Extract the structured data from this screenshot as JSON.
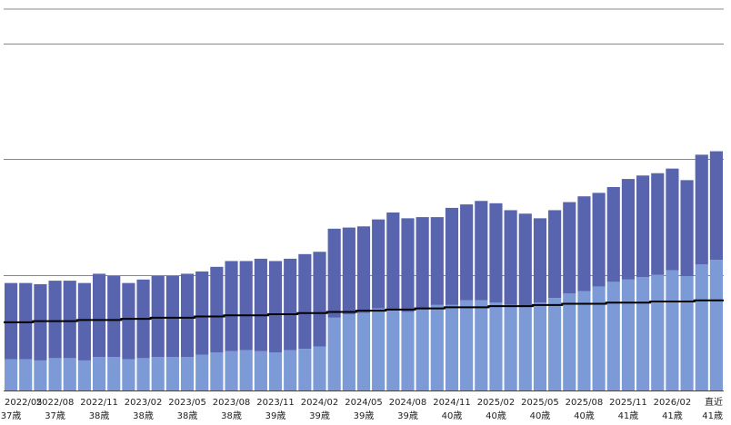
{
  "chart_data": {
    "type": "bar",
    "stacked": true,
    "grid": true,
    "ylim": [
      0,
      330
    ],
    "gridlines": [
      100,
      200,
      300
    ],
    "colors": {
      "lower": "#7b9ad6",
      "upper": "#5864ad",
      "line": "#000000",
      "grid": "#888888",
      "axis": "#444444"
    },
    "series": [
      {
        "values": [
          27,
          27,
          26,
          28,
          28,
          26,
          29,
          29,
          27,
          28,
          29,
          29,
          29,
          31,
          33,
          34,
          35,
          34,
          33,
          35,
          36,
          38,
          63,
          66,
          67,
          71,
          69,
          68,
          70,
          74,
          74,
          78,
          78,
          76,
          74,
          72,
          76,
          80,
          84,
          86,
          90,
          94,
          96,
          98,
          100,
          104,
          99,
          109,
          113
        ],
        "role": "lower"
      },
      {
        "values": [
          66,
          66,
          66,
          67,
          67,
          67,
          72,
          70,
          66,
          68,
          70,
          70,
          72,
          72,
          74,
          78,
          77,
          80,
          79,
          79,
          82,
          82,
          77,
          75,
          75,
          77,
          85,
          81,
          80,
          76,
          84,
          83,
          86,
          86,
          82,
          81,
          73,
          76,
          79,
          82,
          81,
          82,
          87,
          88,
          88,
          88,
          83,
          95,
          94
        ]
      },
      {
        "values": [
          59,
          59,
          60,
          60,
          60,
          61,
          61,
          61,
          62,
          62,
          63,
          63,
          63,
          64,
          64,
          65,
          65,
          65,
          66,
          66,
          67,
          67,
          68,
          68,
          69,
          69,
          70,
          70,
          71,
          71,
          72,
          72,
          72,
          73,
          73,
          73,
          74,
          74,
          75,
          75,
          75,
          76,
          76,
          76,
          77,
          77,
          77,
          78,
          78
        ],
        "type": "line"
      }
    ],
    "ticks": [
      {
        "index": 0,
        "top": "2022/05",
        "bottom": "37歳"
      },
      {
        "index": 3,
        "top": "2022/08",
        "bottom": "37歳"
      },
      {
        "index": 6,
        "top": "2022/11",
        "bottom": "38歳"
      },
      {
        "index": 9,
        "top": "2023/02",
        "bottom": "38歳"
      },
      {
        "index": 12,
        "top": "2023/05",
        "bottom": "38歳"
      },
      {
        "index": 15,
        "top": "2023/08",
        "bottom": "38歳"
      },
      {
        "index": 18,
        "top": "2023/11",
        "bottom": "39歳"
      },
      {
        "index": 21,
        "top": "2024/02",
        "bottom": "39歳"
      },
      {
        "index": 24,
        "top": "2024/05",
        "bottom": "39歳"
      },
      {
        "index": 27,
        "top": "2024/08",
        "bottom": "39歳"
      },
      {
        "index": 30,
        "top": "2024/11",
        "bottom": "40歳"
      },
      {
        "index": 33,
        "top": "2025/02",
        "bottom": "40歳"
      },
      {
        "index": 36,
        "top": "2025/05",
        "bottom": "40歳"
      },
      {
        "index": 39,
        "top": "2025/08",
        "bottom": "40歳"
      },
      {
        "index": 42,
        "top": "2025/11",
        "bottom": "41歳"
      },
      {
        "index": 45,
        "top": "2026/02",
        "bottom": "41歳"
      },
      {
        "index": 48,
        "top": "直近",
        "bottom": "41歳"
      }
    ]
  }
}
